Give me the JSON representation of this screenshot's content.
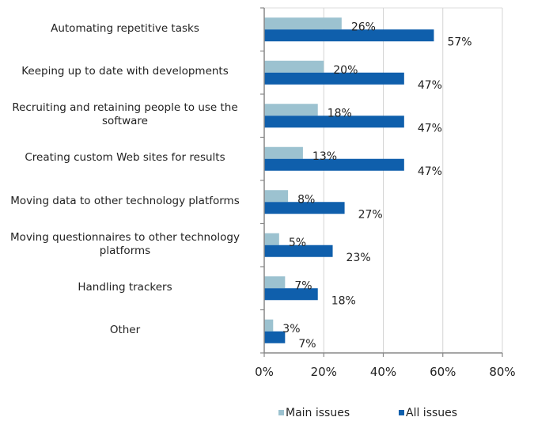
{
  "chart_data": {
    "type": "bar",
    "orientation": "horizontal",
    "title": "",
    "xlabel": "",
    "ylabel": "",
    "categories": [
      "Automating repetitive tasks",
      "Keeping up to date with developments",
      "Recruiting and retaining people to use the software",
      "Creating custom Web sites for results",
      "Moving data to other technology platforms",
      "Moving questionnaires to other technology platforms",
      "Handling trackers",
      "Other"
    ],
    "category_lines": [
      [
        "Automating repetitive tasks"
      ],
      [
        "Keeping up to date with developments"
      ],
      [
        "Recruiting and retaining people to use the",
        "software"
      ],
      [
        "Creating custom Web sites for results"
      ],
      [
        "Moving data to other technology platforms"
      ],
      [
        "Moving questionnaires to other technology",
        "platforms"
      ],
      [
        "Handling trackers"
      ],
      [
        "Other"
      ]
    ],
    "series": [
      {
        "name": "Main issues",
        "color": "#9cc2d0",
        "values": [
          26,
          20,
          18,
          13,
          8,
          5,
          7,
          3
        ],
        "labels": [
          "26%",
          "20%",
          "18%",
          "13%",
          "8%",
          "5%",
          "7%",
          "3%"
        ]
      },
      {
        "name": "All issues",
        "color": "#0f5fac",
        "values": [
          57,
          47,
          47,
          47,
          27,
          23,
          18,
          7
        ],
        "labels": [
          "57%",
          "47%",
          "47%",
          "47%",
          "27%",
          "23%",
          "18%",
          "7%"
        ]
      }
    ],
    "xlim": [
      0,
      80
    ],
    "xticks": [
      0,
      20,
      40,
      60,
      80
    ],
    "xtick_labels": [
      "0%",
      "20%",
      "40%",
      "60%",
      "80%"
    ],
    "grid": true,
    "legend_position": "bottom"
  }
}
